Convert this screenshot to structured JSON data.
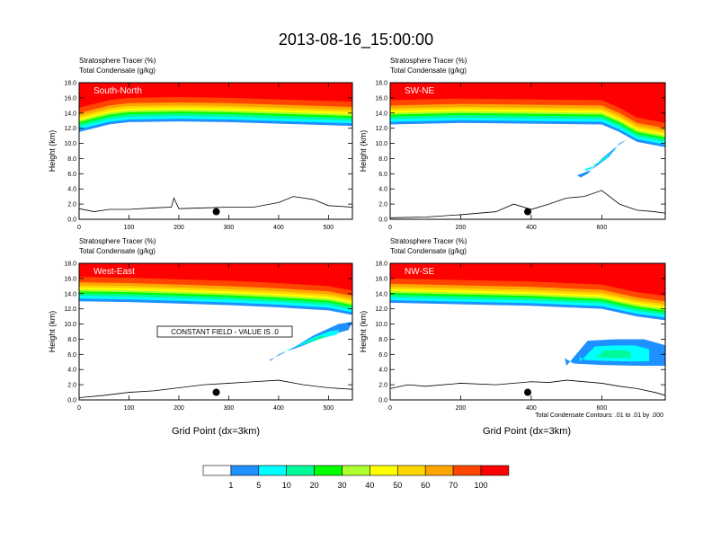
{
  "title": "2013-08-16_15:00:00",
  "var_label_1": "Stratosphere Tracer   (%)",
  "var_label_2": "Total Condensate   (g/kg)",
  "xlabel": "Grid Point (dx=3km)",
  "ylabel": "Height (km)",
  "constant_field_note": "CONSTANT FIELD - VALUE IS .0",
  "contour_note": "Total Condensate Contours: .01 to .01 by .000",
  "colorbar": {
    "colors": [
      "#ffffff",
      "#1e90ff",
      "#00ffff",
      "#00fa9a",
      "#00ff00",
      "#adff2f",
      "#ffff00",
      "#ffd700",
      "#ffa500",
      "#ff4500",
      "#ff0000"
    ],
    "labels": [
      "1",
      "5",
      "10",
      "20",
      "30",
      "40",
      "50",
      "60",
      "70",
      "100"
    ]
  },
  "chart_data": [
    {
      "type": "heatmap",
      "panel_label": "South-North",
      "xlim": [
        0,
        548
      ],
      "ylim": [
        0,
        18
      ],
      "xticks": [
        "0",
        "100",
        "200",
        "300",
        "400",
        "500"
      ],
      "yticks": [
        "0.0",
        "2.0",
        "4.0",
        "6.0",
        "8.0",
        "10.0",
        "12.0",
        "14.0",
        "16.0",
        "18.0"
      ],
      "marker": {
        "x": 275,
        "y": 1.0
      },
      "tracer_band": {
        "x": [
          0,
          60,
          100,
          200,
          300,
          400,
          500,
          548
        ],
        "bottom_km": [
          11.5,
          12.5,
          12.8,
          12.9,
          12.8,
          12.6,
          12.4,
          12.3
        ]
      },
      "terrain": {
        "x": [
          0,
          30,
          60,
          100,
          150,
          185,
          190,
          200,
          250,
          300,
          350,
          400,
          430,
          470,
          500,
          548
        ],
        "height_km": [
          1.4,
          1.0,
          1.3,
          1.3,
          1.5,
          1.6,
          2.8,
          1.4,
          1.5,
          1.6,
          1.6,
          2.2,
          3.0,
          2.6,
          1.8,
          1.6
        ]
      }
    },
    {
      "type": "heatmap",
      "panel_label": "SW-NE",
      "xlim": [
        0,
        780
      ],
      "ylim": [
        0,
        18
      ],
      "xticks": [
        "0",
        "200",
        "400",
        "600"
      ],
      "yticks": [
        "0.0",
        "2.0",
        "4.0",
        "6.0",
        "8.0",
        "10.0",
        "12.0",
        "14.0",
        "16.0",
        "18.0"
      ],
      "marker": {
        "x": 390,
        "y": 1.0
      },
      "tracer_band": {
        "x": [
          0,
          200,
          400,
          600,
          650,
          700,
          780
        ],
        "bottom_km": [
          12.5,
          12.7,
          12.6,
          12.5,
          11.5,
          10.2,
          9.5
        ]
      },
      "condensate_blob": {
        "x": [
          530,
          570,
          620,
          650,
          670,
          640,
          600,
          560,
          540
        ],
        "y_km": [
          5.8,
          6.5,
          8.2,
          10.0,
          10.5,
          9.5,
          8.0,
          6.0,
          5.5
        ]
      },
      "terrain": {
        "x": [
          0,
          100,
          200,
          300,
          350,
          400,
          450,
          500,
          550,
          600,
          650,
          700,
          750,
          780
        ],
        "height_km": [
          0.2,
          0.3,
          0.6,
          1.0,
          2.0,
          1.3,
          2.0,
          2.8,
          3.0,
          3.8,
          2.0,
          1.2,
          1.0,
          0.8
        ]
      }
    },
    {
      "type": "heatmap",
      "panel_label": "West-East",
      "xlim": [
        0,
        548
      ],
      "ylim": [
        0,
        18
      ],
      "xticks": [
        "0",
        "100",
        "200",
        "300",
        "400",
        "500"
      ],
      "yticks": [
        "0.0",
        "2.0",
        "4.0",
        "6.0",
        "8.0",
        "10.0",
        "12.0",
        "14.0",
        "16.0",
        "18.0"
      ],
      "marker": {
        "x": 275,
        "y": 1.0
      },
      "tracer_band": {
        "x": [
          0,
          100,
          200,
          300,
          400,
          500,
          548
        ],
        "bottom_km": [
          13.0,
          12.9,
          12.7,
          12.5,
          12.2,
          11.8,
          11.2
        ]
      },
      "condensate_blob": {
        "x": [
          380,
          420,
          470,
          520,
          548,
          540,
          500,
          450,
          400,
          385
        ],
        "y_km": [
          5.2,
          6.5,
          8.5,
          10.0,
          10.3,
          9.2,
          8.5,
          7.2,
          6.0,
          5.2
        ]
      },
      "terrain": {
        "x": [
          0,
          50,
          100,
          150,
          200,
          250,
          300,
          350,
          400,
          450,
          500,
          548
        ],
        "height_km": [
          0.3,
          0.6,
          1.0,
          1.2,
          1.6,
          2.0,
          2.2,
          2.4,
          2.6,
          2.0,
          1.6,
          1.4
        ]
      }
    },
    {
      "type": "heatmap",
      "panel_label": "NW-SE",
      "xlim": [
        0,
        780
      ],
      "ylim": [
        0,
        18
      ],
      "xticks": [
        "0",
        "200",
        "400",
        "600"
      ],
      "yticks": [
        "0.0",
        "2.0",
        "4.0",
        "6.0",
        "8.0",
        "10.0",
        "12.0",
        "14.0",
        "16.0",
        "18.0"
      ],
      "marker": {
        "x": 390,
        "y": 1.0
      },
      "tracer_band": {
        "x": [
          0,
          200,
          400,
          600,
          700,
          780
        ],
        "bottom_km": [
          12.8,
          12.6,
          12.4,
          12.0,
          11.0,
          10.5
        ]
      },
      "condensate_blob": {
        "x": [
          500,
          560,
          640,
          720,
          780,
          780,
          700,
          600,
          520,
          495
        ],
        "y_km": [
          4.5,
          7.8,
          8.0,
          8.0,
          7.2,
          4.5,
          4.5,
          4.6,
          4.8,
          5.5
        ]
      },
      "terrain": {
        "x": [
          0,
          50,
          100,
          200,
          300,
          400,
          450,
          500,
          600,
          650,
          700,
          750,
          780
        ],
        "height_km": [
          1.5,
          2.0,
          1.8,
          2.2,
          2.0,
          2.4,
          2.3,
          2.6,
          2.2,
          1.8,
          1.5,
          1.0,
          0.6
        ]
      }
    }
  ]
}
